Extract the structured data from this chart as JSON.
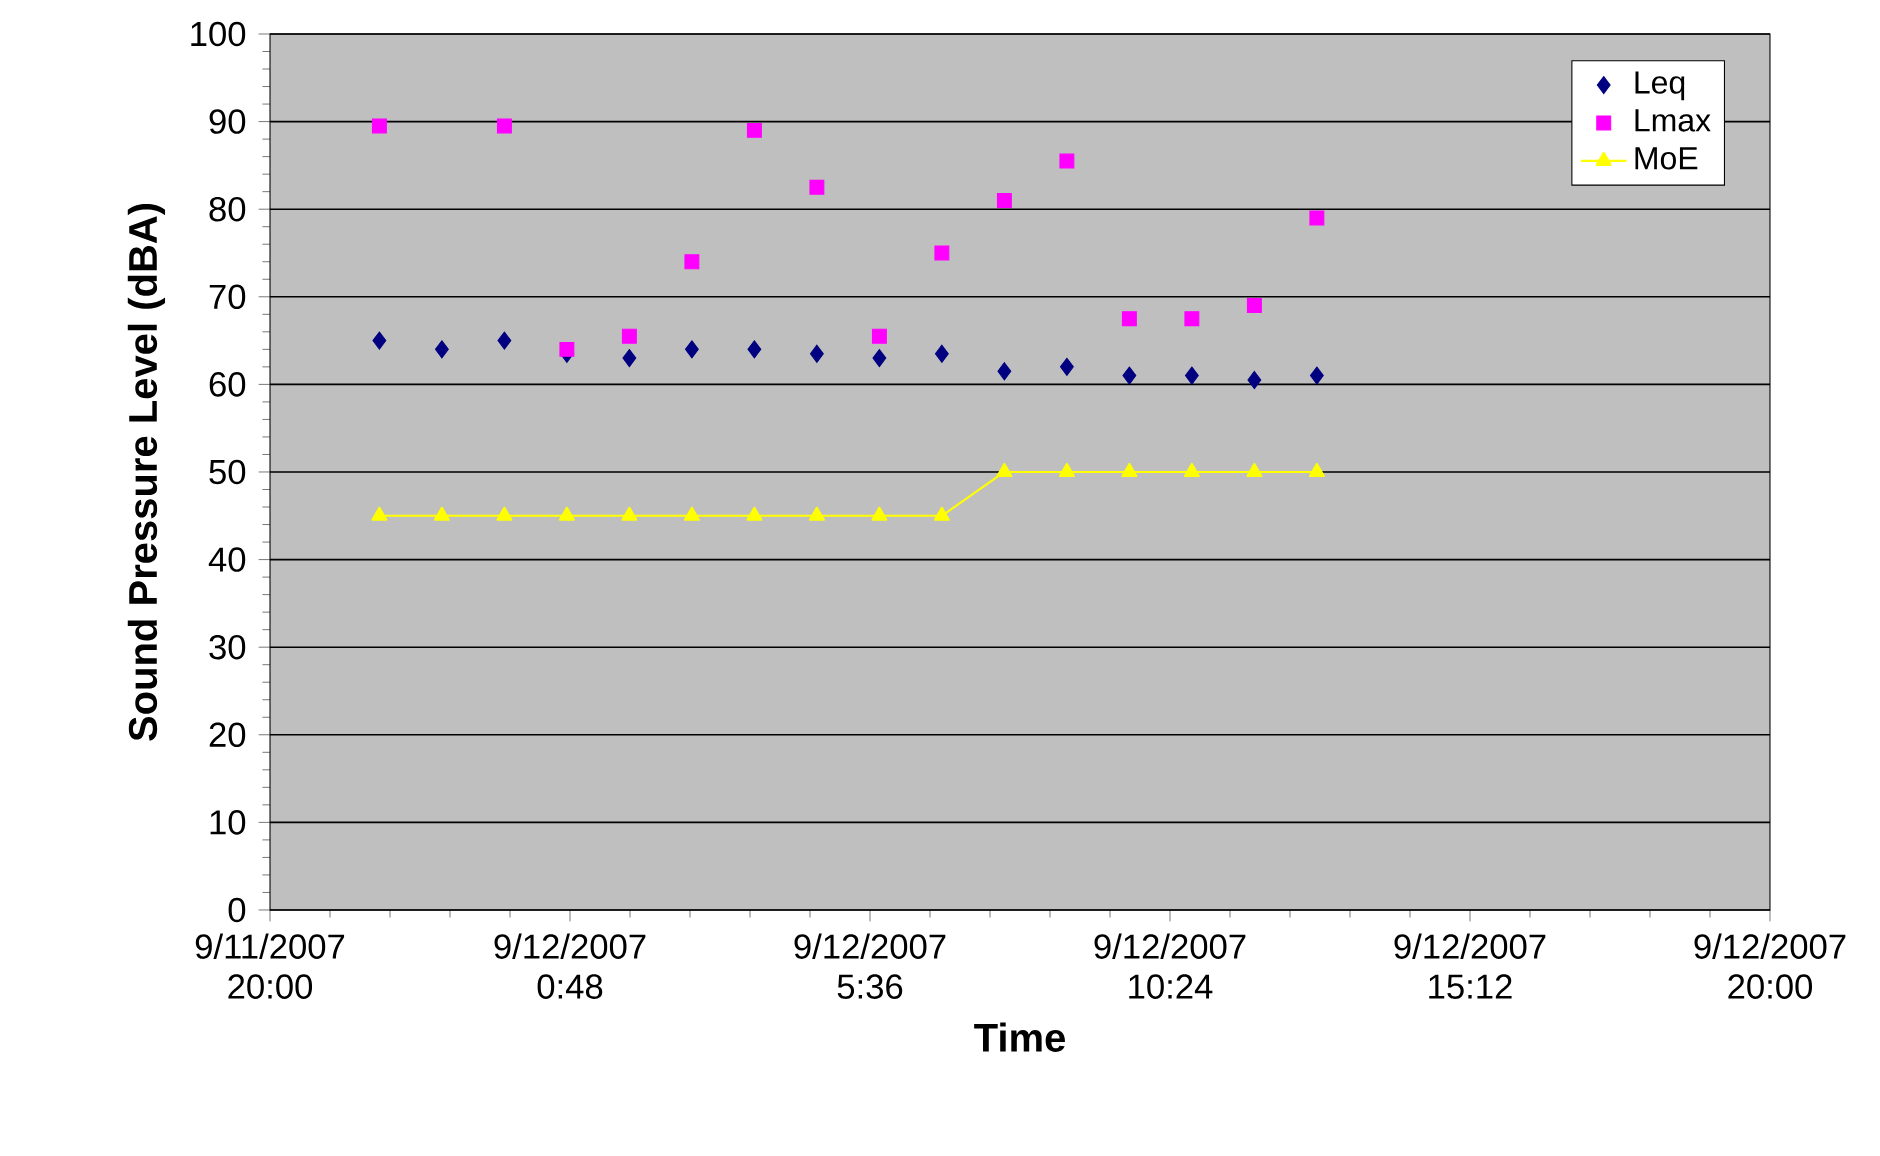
{
  "chart_data": {
    "type": "scatter",
    "xlabel": "Time",
    "ylabel": "Sound Pressure Level (dBA)",
    "x": [
      "2007-09-11T21:45",
      "2007-09-11T22:45",
      "2007-09-11T23:45",
      "2007-09-12T00:45",
      "2007-09-12T01:45",
      "2007-09-12T02:45",
      "2007-09-12T03:45",
      "2007-09-12T04:45",
      "2007-09-12T05:45",
      "2007-09-12T06:45",
      "2007-09-12T07:45",
      "2007-09-12T08:45",
      "2007-09-12T09:45",
      "2007-09-12T10:45",
      "2007-09-12T11:45",
      "2007-09-12T12:45"
    ],
    "series": [
      {
        "name": "Leq",
        "marker": "diamond",
        "color": "#000080",
        "values": [
          65,
          64,
          65,
          63.5,
          63,
          64,
          64,
          63.5,
          63,
          63.5,
          61.5,
          62,
          61,
          61,
          60.5,
          61
        ]
      },
      {
        "name": "Lmax",
        "marker": "square",
        "color": "#ff00ff",
        "values": [
          89.5,
          null,
          89.5,
          64,
          65.5,
          74,
          89,
          82.5,
          65.5,
          75,
          81,
          85.5,
          67.5,
          67.5,
          69,
          79
        ]
      },
      {
        "name": "MoE",
        "type": "line",
        "marker": "triangle",
        "line_style": "solid",
        "color": "#ffff00",
        "values": [
          45,
          45,
          45,
          45,
          45,
          45,
          45,
          45,
          45,
          45,
          50,
          50,
          50,
          50,
          50,
          50
        ]
      }
    ],
    "xlim": [
      "2007-09-11T20:00",
      "2007-09-12T20:00"
    ],
    "xticks": [
      {
        "value": "2007-09-11T20:00",
        "label": "9/11/2007 20:00"
      },
      {
        "value": "2007-09-12T00:48",
        "label": "9/12/2007 0:48"
      },
      {
        "value": "2007-09-12T05:36",
        "label": "9/12/2007 5:36"
      },
      {
        "value": "2007-09-12T10:24",
        "label": "9/12/2007 10:24"
      },
      {
        "value": "2007-09-12T15:12",
        "label": "9/12/2007 15:12"
      },
      {
        "value": "2007-09-12T20:00",
        "label": "9/12/2007 20:00"
      }
    ],
    "ylim": [
      0,
      100
    ],
    "yticks": [
      0,
      10,
      20,
      30,
      40,
      50,
      60,
      70,
      80,
      90,
      100
    ],
    "grid": "y",
    "legend": "top right"
  }
}
